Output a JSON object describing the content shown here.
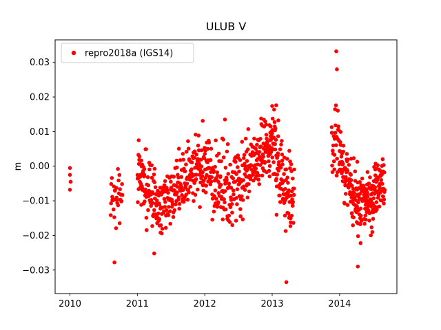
{
  "figure": {
    "background": "#ffffff"
  },
  "chart_data": {
    "type": "scatter",
    "title": "ULUB V",
    "xlabel": "",
    "ylabel": "m",
    "series_name": "repro2018a (IGS14)",
    "legend_position": "upper left",
    "grid": false,
    "marker": {
      "color": "#ff0000",
      "radius_px": 2.8,
      "shape": "circle"
    },
    "xlim": [
      2009.78,
      2014.85
    ],
    "ylim": [
      -0.0368,
      0.0365
    ],
    "xticks": [
      2010,
      2011,
      2012,
      2013,
      2014
    ],
    "xtick_labels": [
      "2010",
      "2011",
      "2012",
      "2013",
      "2014"
    ],
    "yticks": [
      -0.03,
      -0.02,
      -0.01,
      0.0,
      0.01,
      0.02,
      0.03
    ],
    "ytick_labels": [
      "−0.03",
      "−0.02",
      "−0.01",
      "0.00",
      "0.01",
      "0.02",
      "0.03"
    ],
    "seed": 12345,
    "points_explicit": [
      [
        2010.0,
        -0.0005
      ],
      [
        2010.0,
        -0.0025
      ],
      [
        2010.01,
        -0.0045
      ],
      [
        2010.0,
        -0.0068
      ],
      [
        2010.66,
        -0.0278
      ],
      [
        2011.25,
        -0.0252
      ],
      [
        2011.97,
        0.0131
      ],
      [
        2012.3,
        0.0135
      ],
      [
        2013.0,
        0.0174
      ],
      [
        2013.06,
        0.0176
      ],
      [
        2013.21,
        -0.0335
      ],
      [
        2013.95,
        0.0332
      ],
      [
        2013.96,
        0.028
      ],
      [
        2014.27,
        -0.029
      ]
    ],
    "clusters": [
      {
        "x0": 2010.6,
        "x1": 2010.78,
        "n": 32,
        "c0": -0.008,
        "c1": -0.009,
        "sd": 0.004
      },
      {
        "x0": 2011.0,
        "x1": 2011.13,
        "n": 40,
        "c0": -0.003,
        "c1": -0.005,
        "sd": 0.0045
      },
      {
        "x0": 2011.13,
        "x1": 2011.35,
        "n": 65,
        "c0": -0.009,
        "c1": -0.012,
        "sd": 0.005
      },
      {
        "x0": 2011.35,
        "x1": 2011.6,
        "n": 65,
        "c0": -0.011,
        "c1": -0.007,
        "sd": 0.0045
      },
      {
        "x0": 2011.6,
        "x1": 2011.85,
        "n": 65,
        "c0": -0.006,
        "c1": -0.002,
        "sd": 0.0045
      },
      {
        "x0": 2011.85,
        "x1": 2012.1,
        "n": 70,
        "c0": -0.001,
        "c1": 0.001,
        "sd": 0.005
      },
      {
        "x0": 2012.1,
        "x1": 2012.35,
        "n": 65,
        "c0": -0.002,
        "c1": -0.007,
        "sd": 0.0055
      },
      {
        "x0": 2012.35,
        "x1": 2012.6,
        "n": 60,
        "c0": -0.009,
        "c1": -0.004,
        "sd": 0.005
      },
      {
        "x0": 2012.6,
        "x1": 2012.85,
        "n": 70,
        "c0": -0.002,
        "c1": 0.002,
        "sd": 0.005
      },
      {
        "x0": 2012.85,
        "x1": 2013.05,
        "n": 80,
        "c0": 0.005,
        "c1": 0.007,
        "sd": 0.0045
      },
      {
        "x0": 2013.05,
        "x1": 2013.2,
        "n": 50,
        "c0": 0.001,
        "c1": -0.005,
        "sd": 0.006
      },
      {
        "x0": 2013.2,
        "x1": 2013.33,
        "n": 40,
        "c0": -0.008,
        "c1": -0.009,
        "sd": 0.0055
      },
      {
        "x0": 2013.88,
        "x1": 2013.99,
        "n": 26,
        "c0": 0.008,
        "c1": 0.006,
        "sd": 0.0045
      },
      {
        "x0": 2013.99,
        "x1": 2014.15,
        "n": 55,
        "c0": 0.002,
        "c1": -0.004,
        "sd": 0.004
      },
      {
        "x0": 2014.15,
        "x1": 2014.35,
        "n": 70,
        "c0": -0.008,
        "c1": -0.012,
        "sd": 0.0048
      },
      {
        "x0": 2014.35,
        "x1": 2014.55,
        "n": 80,
        "c0": -0.01,
        "c1": -0.009,
        "sd": 0.0045
      },
      {
        "x0": 2014.55,
        "x1": 2014.67,
        "n": 40,
        "c0": -0.006,
        "c1": -0.005,
        "sd": 0.0035
      }
    ]
  }
}
